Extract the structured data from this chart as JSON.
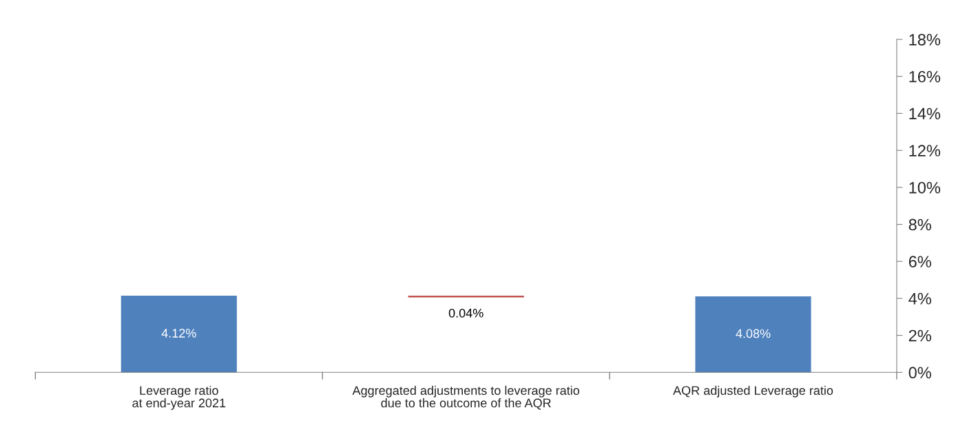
{
  "chart_data": {
    "type": "bar",
    "categories": [
      "Leverage ratio\nat end-year 2021",
      "Aggregated adjustments to leverage ratio\ndue to the outcome of the AQR",
      "AQR adjusted Leverage ratio"
    ],
    "values": [
      4.12,
      0.04,
      4.08
    ],
    "base": [
      0,
      4.08,
      0
    ],
    "colors": [
      "#4f81bd",
      "#c0504d",
      "#4f81bd"
    ],
    "value_labels": [
      "4.12%",
      "0.04%",
      "4.08%"
    ],
    "ylim": [
      0,
      18
    ],
    "yticks": [
      {
        "value": 0,
        "label": "0%"
      },
      {
        "value": 2,
        "label": "2%"
      },
      {
        "value": 4,
        "label": "4%"
      },
      {
        "value": 6,
        "label": "6%"
      },
      {
        "value": 8,
        "label": "8%"
      },
      {
        "value": 10,
        "label": "10%"
      },
      {
        "value": 12,
        "label": "12%"
      },
      {
        "value": 14,
        "label": "14%"
      },
      {
        "value": 16,
        "label": "16%"
      },
      {
        "value": 18,
        "label": "18%"
      }
    ],
    "grid": false,
    "legend": false
  }
}
